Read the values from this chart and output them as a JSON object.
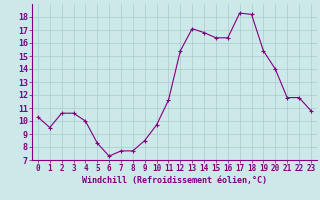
{
  "x": [
    0,
    1,
    2,
    3,
    4,
    5,
    6,
    7,
    8,
    9,
    10,
    11,
    12,
    13,
    14,
    15,
    16,
    17,
    18,
    19,
    20,
    21,
    22,
    23
  ],
  "y": [
    10.3,
    9.5,
    10.6,
    10.6,
    10.0,
    8.3,
    7.3,
    7.7,
    7.7,
    8.5,
    9.7,
    11.6,
    15.4,
    17.1,
    16.8,
    16.4,
    16.4,
    18.3,
    18.2,
    15.4,
    14.0,
    11.8,
    11.8,
    10.8
  ],
  "xlabel": "Windchill (Refroidissement éolien,°C)",
  "ylim": [
    7,
    19
  ],
  "xlim": [
    -0.5,
    23.5
  ],
  "yticks": [
    7,
    8,
    9,
    10,
    11,
    12,
    13,
    14,
    15,
    16,
    17,
    18
  ],
  "xticks": [
    0,
    1,
    2,
    3,
    4,
    5,
    6,
    7,
    8,
    9,
    10,
    11,
    12,
    13,
    14,
    15,
    16,
    17,
    18,
    19,
    20,
    21,
    22,
    23
  ],
  "line_color": "#800080",
  "marker_color": "#800080",
  "bg_color": "#cce8e8",
  "grid_color": "#aacaca",
  "tick_label_color": "#800080",
  "xlabel_color": "#800080",
  "xlabel_fontsize": 6.0,
  "tick_fontsize": 5.5,
  "ytick_fontsize": 6.0
}
